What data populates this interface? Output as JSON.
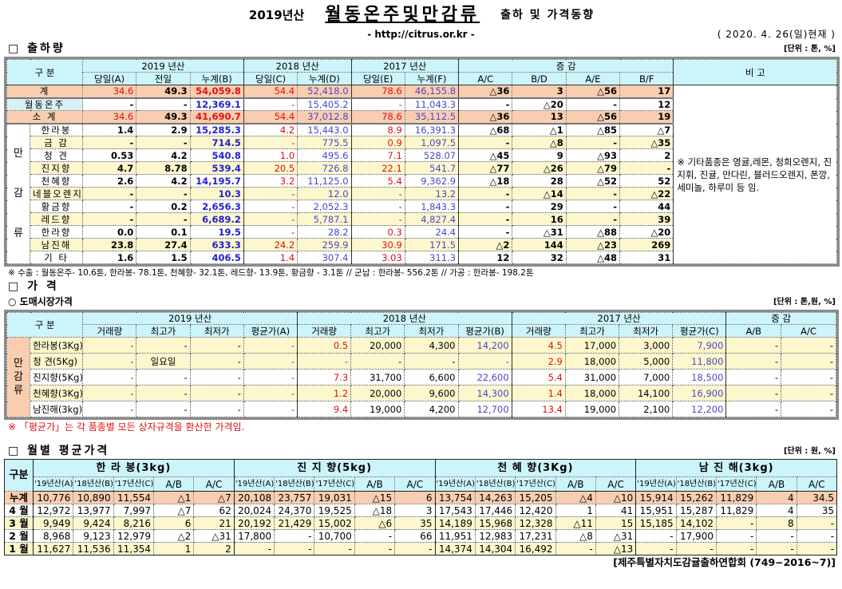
{
  "header": {
    "year": "2019년산",
    "title": "월동온주및만감류",
    "subtitle": "출하 및 가격동향",
    "url": "- http://citrus.or.kr -",
    "date": "( 2020. 4. 26(일)현재 )"
  },
  "shipment": {
    "section_title": "□ 출하량",
    "unit": "[단위 : 톤, %]",
    "headers": {
      "category": "구    분",
      "y2019": "2019 년산",
      "y2018": "2018 년산",
      "y2017": "2017 년산",
      "change": "증    감",
      "remarks": "비 고",
      "cols": [
        "당일(A)",
        "전일",
        "누계(B)",
        "당일(C)",
        "누계(D)",
        "당일(E)",
        "누계(F)",
        "A/C",
        "B/D",
        "A/E",
        "B/F"
      ]
    },
    "group_label": [
      "만",
      "감",
      "류"
    ],
    "remarks_text": "※ 기타품종은 영귤,레몬, 청희오렌지, 진지휘, 진귤, 만다린, 블러드오렌지, 폰깡,세미놀, 하루미 등 임.",
    "rows": [
      {
        "label": "계",
        "style": "sal",
        "values": [
          "34.6",
          "49.3",
          "54,059.8",
          "54.4",
          "52,418.0",
          "78.6",
          "46,155.8",
          "△36",
          "3",
          "△56",
          "17"
        ]
      },
      {
        "label": "월동온주",
        "style": "white",
        "values": [
          "-",
          "-",
          "12,369.1",
          "-",
          "15,405.2",
          "-",
          "11,043.3",
          "-",
          "△20",
          "-",
          "12"
        ]
      },
      {
        "label": "소  계",
        "style": "sal",
        "values": [
          "34.6",
          "49.3",
          "41,690.7",
          "54.4",
          "37,012.8",
          "78.6",
          "35,112.5",
          "△36",
          "13",
          "△56",
          "19"
        ]
      },
      {
        "label": "한라봉",
        "style": "white",
        "values": [
          "1.4",
          "2.9",
          "15,285.3",
          "4.2",
          "15,443.0",
          "8.9",
          "16,391.3",
          "△68",
          "△1",
          "△85",
          "△7"
        ]
      },
      {
        "label": "금  감",
        "style": "yel",
        "values": [
          "-",
          "-",
          "714.5",
          "-",
          "775.5",
          "0.9",
          "1,097.5",
          "-",
          "△8",
          "-",
          "△35"
        ]
      },
      {
        "label": "청  견",
        "style": "white",
        "values": [
          "0.53",
          "4.2",
          "540.8",
          "1.0",
          "495.6",
          "7.1",
          "528.07",
          "△45",
          "9",
          "△93",
          "2"
        ]
      },
      {
        "label": "진지향",
        "style": "yel",
        "values": [
          "4.7",
          "8.78",
          "539.4",
          "20.5",
          "726.8",
          "22.1",
          "541.7",
          "△77",
          "△26",
          "△79",
          "-"
        ]
      },
      {
        "label": "천혜향",
        "style": "white",
        "values": [
          "2.6",
          "4.2",
          "14,195.7",
          "3.2",
          "11,125.0",
          "5.4",
          "9,362.9",
          "△18",
          "28",
          "△52",
          "52"
        ]
      },
      {
        "label": "네블오렌지",
        "style": "yel",
        "values": [
          "-",
          "-",
          "10.3",
          "-",
          "12.0",
          "-",
          "13.2",
          "-",
          "△14",
          "-",
          "△22"
        ]
      },
      {
        "label": "황금향",
        "style": "white",
        "values": [
          "-",
          "0.2",
          "2,656.3",
          "-",
          "2,052.3",
          "-",
          "1,843.3",
          "-",
          "29",
          "-",
          "44"
        ]
      },
      {
        "label": "레드향",
        "style": "yel",
        "values": [
          "-",
          "-",
          "6,689.2",
          "-",
          "5,787.1",
          "-",
          "4,827.4",
          "-",
          "16",
          "-",
          "39"
        ]
      },
      {
        "label": "한라향",
        "style": "white",
        "values": [
          "0.0",
          "0.1",
          "19.5",
          "-",
          "28.2",
          "0.3",
          "24.4",
          "-",
          "△31",
          "△88",
          "△20"
        ]
      },
      {
        "label": "남진해",
        "style": "yel",
        "values": [
          "23.8",
          "27.4",
          "633.3",
          "24.2",
          "259.9",
          "30.9",
          "171.5",
          "△2",
          "144",
          "△23",
          "269"
        ]
      },
      {
        "label": "기  타",
        "style": "white",
        "values": [
          "1.6",
          "1.5",
          "406.5",
          "1.4",
          "307.4",
          "3.03",
          "311.3",
          "12",
          "32",
          "△48",
          "31"
        ]
      }
    ],
    "export_note": "※ 수출 : 월동온주- 10.6톤, 한라봉- 78.1톤, 천혜향- 32.1톤, 레드향- 13.9톤, 황금향 - 3.1톤  // 군납 : 한라봉- 556.2톤 // 가공 : 한라봉- 198.2톤"
  },
  "price": {
    "section_title": "□ 가    격",
    "sub_title": "○ 도매시장가격",
    "unit": "[단위 : 톤,원, %]",
    "headers": {
      "category": "구    분",
      "y2019": "2019 년산",
      "y2018": "2018 년산",
      "y2017": "2017 년산",
      "change": "증    감",
      "cols": [
        "거래량",
        "최고가",
        "최저가",
        "평균가(A)",
        "거래량",
        "최고가",
        "최저가",
        "평균가(B)",
        "거래량",
        "최고가",
        "최저가",
        "평균가(C)",
        "A/B",
        "A/C"
      ]
    },
    "group_label": "만 감 류",
    "rows": [
      {
        "label": "한라봉(3Kg)",
        "style": "yel",
        "values": [
          "-",
          "-",
          "-",
          "-",
          "0.5",
          "20,000",
          "4,300",
          "14,200",
          "4.5",
          "17,000",
          "3,000",
          "7,900",
          "-",
          "-"
        ]
      },
      {
        "label": "청    견(5Kg)",
        "style": "yel",
        "values": [
          "-",
          "일요일",
          "-",
          "-",
          "-",
          "-",
          "-",
          "-",
          "2.9",
          "18,000",
          "5,000",
          "11,800",
          "-",
          "-"
        ]
      },
      {
        "label": "진지향(5Kg)",
        "style": "white",
        "values": [
          "-",
          "-",
          "-",
          "-",
          "7.3",
          "31,700",
          "6,600",
          "22,600",
          "5.4",
          "31,000",
          "7,000",
          "18,500",
          "-",
          "-"
        ]
      },
      {
        "label": "천혜향(3Kg)",
        "style": "yel",
        "values": [
          "-",
          "-",
          "-",
          "-",
          "1.2",
          "20,000",
          "9,600",
          "14,300",
          "1.4",
          "18,000",
          "14,100",
          "16,900",
          "-",
          "-"
        ]
      },
      {
        "label": "남진해(3kg)",
        "style": "white",
        "values": [
          "-",
          "-",
          "-",
          "-",
          "9.4",
          "19,000",
          "4,200",
          "12,700",
          "13.4",
          "19,000",
          "2,100",
          "12,200",
          "-",
          "-"
        ]
      }
    ],
    "footnote": "※  「평균가」는 각 품종별 모든 상자규격을 환산한 가격임."
  },
  "monthly": {
    "section_title": "□ 월별 평균가격",
    "unit": "[단위 : 원, %]",
    "headers": {
      "category": "구분",
      "groups": [
        "한 라 봉(3kg)",
        "진 지 향(5kg)",
        "천 혜 향(3Kg)",
        "남 진 해(3kg)"
      ],
      "cols": [
        "'19년산(A)",
        "'18년산(B)",
        "'17년산(C)",
        "A/B",
        "A/C"
      ]
    },
    "rows": [
      {
        "label": "누계",
        "style": "sal",
        "values": [
          "10,776",
          "10,890",
          "11,554",
          "△1",
          "△7",
          "20,108",
          "23,757",
          "19,031",
          "△15",
          "6",
          "13,754",
          "14,263",
          "15,205",
          "△4",
          "△10",
          "15,914",
          "15,262",
          "11,829",
          "4",
          "34.5"
        ]
      },
      {
        "label": "4 월",
        "style": "white",
        "values": [
          "12,972",
          "13,977",
          "7,997",
          "△7",
          "62",
          "20,024",
          "24,370",
          "19,525",
          "△18",
          "3",
          "17,543",
          "17,446",
          "12,420",
          "1",
          "41",
          "15,951",
          "15,287",
          "11,829",
          "4",
          "35"
        ]
      },
      {
        "label": "3 월",
        "style": "yel",
        "values": [
          "9,949",
          "9,424",
          "8,216",
          "6",
          "21",
          "20,192",
          "21,429",
          "15,002",
          "△6",
          "35",
          "14,189",
          "15,968",
          "12,328",
          "△11",
          "15",
          "15,185",
          "14,102",
          "-",
          "8",
          "-"
        ]
      },
      {
        "label": "2 월",
        "style": "white",
        "values": [
          "8,968",
          "9,123",
          "12,979",
          "△2",
          "△31",
          "17,800",
          "-",
          "10,700",
          "-",
          "66",
          "11,951",
          "12,983",
          "17,231",
          "△8",
          "△31",
          "-",
          "17,900",
          "-",
          "-",
          "-"
        ]
      },
      {
        "label": "1 월",
        "style": "yel",
        "values": [
          "11,627",
          "11,536",
          "11,354",
          "1",
          "2",
          "-",
          "-",
          "-",
          "-",
          "-",
          "14,374",
          "14,304",
          "16,492",
          "-",
          "△13",
          "-",
          "-",
          "-",
          "-",
          "-"
        ]
      }
    ],
    "source": "[제주특별자치도감귤출하연합회 (749−2016~7)]"
  }
}
